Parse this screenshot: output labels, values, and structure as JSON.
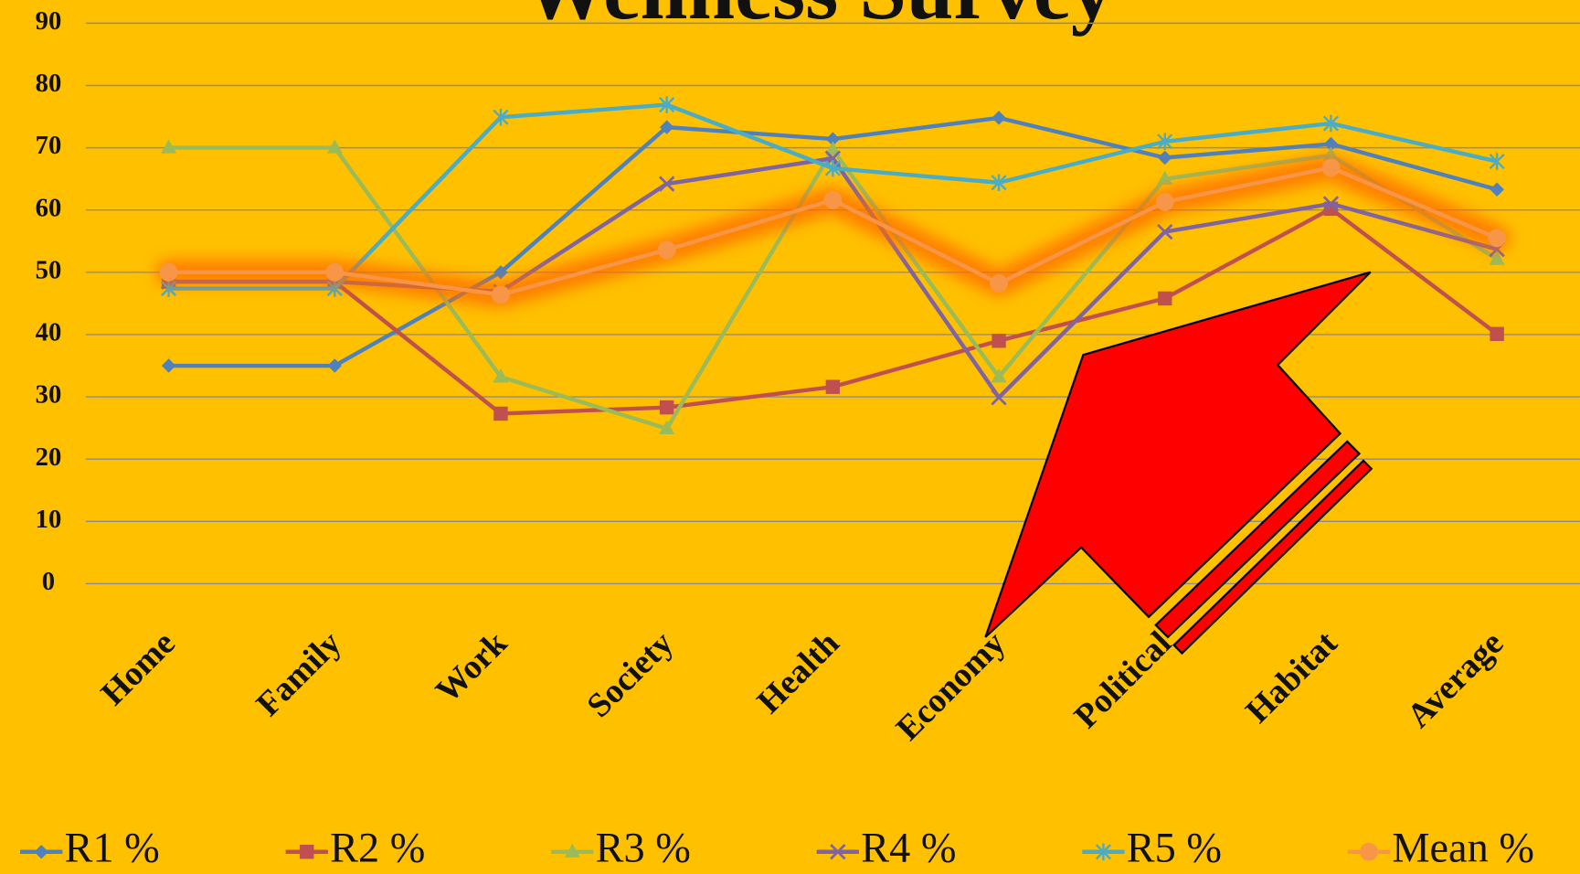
{
  "chart_data": {
    "type": "line",
    "title": "Wellness Survey",
    "categories": [
      "Home",
      "Family",
      "Work",
      "Society",
      "Health",
      "Economy",
      "Political",
      "Habitat",
      "Average"
    ],
    "ylim": [
      0,
      90
    ],
    "yticks": [
      0,
      10,
      20,
      30,
      40,
      50,
      60,
      70,
      80,
      90
    ],
    "grid": true,
    "legend": "bottom",
    "series": [
      {
        "name": "R1 %",
        "color": "#4f81bd",
        "marker": "diamond",
        "values": [
          35,
          35,
          50,
          73.3,
          71.4,
          74.8,
          68.4,
          70.6,
          63.3
        ]
      },
      {
        "name": "R2 %",
        "color": "#c0504d",
        "marker": "square",
        "values": [
          48.5,
          48.5,
          27.3,
          28.3,
          31.6,
          39,
          45.8,
          60.2,
          40.1
        ]
      },
      {
        "name": "R3 %",
        "color": "#9bbb59",
        "marker": "triangle",
        "values": [
          70,
          70,
          33.2,
          24.9,
          69.7,
          33.2,
          65,
          68.8,
          52.1
        ]
      },
      {
        "name": "R4 %",
        "color": "#8064a2",
        "marker": "x",
        "values": [
          48.5,
          48.5,
          46.9,
          64.2,
          68.3,
          29.9,
          56.5,
          61,
          53.7
        ]
      },
      {
        "name": "R5 %",
        "color": "#4bacc6",
        "marker": "star",
        "values": [
          47.4,
          47.4,
          74.9,
          76.9,
          66.7,
          64.4,
          71,
          73.9,
          67.8
        ]
      },
      {
        "name": "Mean %",
        "color": "#f79646",
        "marker": "circle",
        "glow": true,
        "values": [
          50,
          50,
          46.4,
          53.6,
          61.6,
          48.2,
          61.3,
          66.8,
          55.5
        ]
      }
    ]
  }
}
